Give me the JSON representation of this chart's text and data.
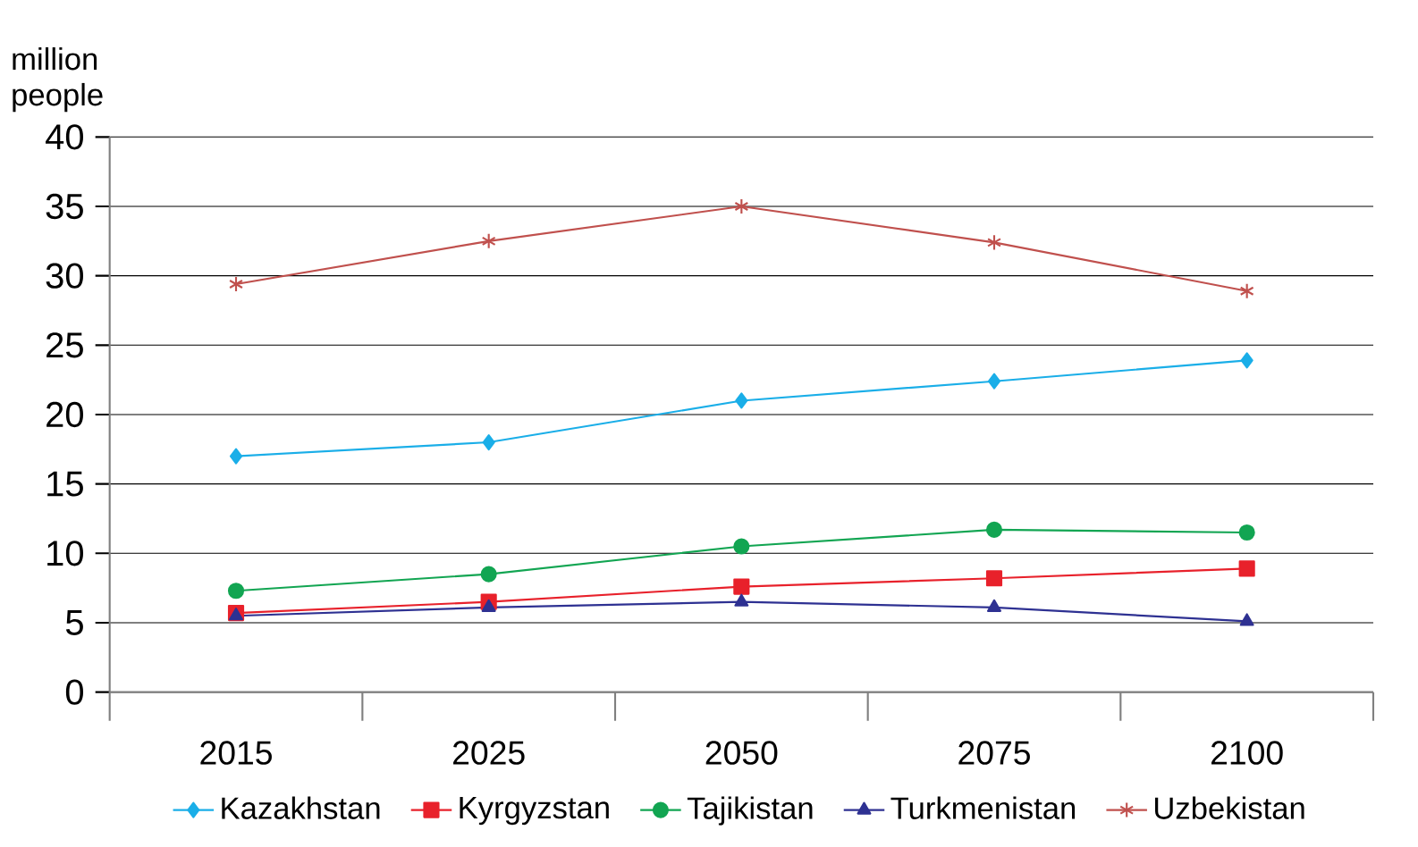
{
  "chart_data": {
    "type": "line",
    "ylabel": "million people",
    "categories": [
      "2015",
      "2025",
      "2050",
      "2075",
      "2100"
    ],
    "series": [
      {
        "name": "Kazakhstan",
        "color": "#1aaee8",
        "marker": "diamond",
        "values": [
          17,
          18,
          21,
          22.4,
          23.9
        ]
      },
      {
        "name": "Kyrgyzstan",
        "color": "#e8212b",
        "marker": "square",
        "values": [
          5.7,
          6.5,
          7.6,
          8.2,
          8.9
        ]
      },
      {
        "name": "Tajikistan",
        "color": "#12a552",
        "marker": "circle",
        "values": [
          7.3,
          8.5,
          10.5,
          11.7,
          11.5
        ]
      },
      {
        "name": "Turkmenistan",
        "color": "#2e3192",
        "marker": "triangle",
        "values": [
          5.5,
          6.1,
          6.5,
          6.1,
          5.1
        ]
      },
      {
        "name": "Uzbekistan",
        "color": "#c0504d",
        "marker": "cross",
        "values": [
          29.4,
          32.5,
          35,
          32.4,
          28.9
        ]
      }
    ],
    "ylim": [
      0,
      40
    ],
    "yticks": [
      0,
      5,
      10,
      15,
      20,
      25,
      30,
      35,
      40
    ],
    "grid": "y",
    "legend": "bottom"
  }
}
